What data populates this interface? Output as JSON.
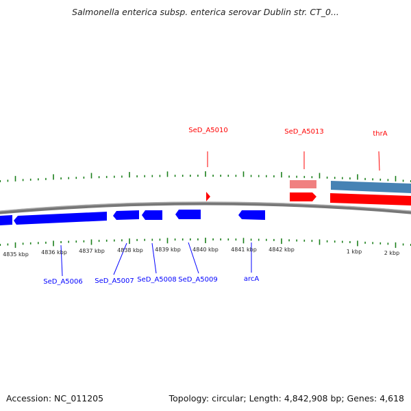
{
  "title": "Salmonella enterica subsp. enterica serovar Dublin str. CT_0...",
  "accession": "Accession: NC_011205",
  "summary": "Topology: circular; Length: 4,842,908 bp; Genes: 4,618",
  "colors": {
    "forward": "#ff0000",
    "forward_light": "#f08080",
    "reverse": "#0000ff",
    "steel": "#4682b4",
    "tick": "#1a7f1a",
    "backbone": "#888888"
  },
  "kbp_labels": [
    "4835 kbp",
    "4836 kbp",
    "4837 kbp",
    "4838 kbp",
    "4839 kbp",
    "4840 kbp",
    "4841 kbp",
    "4842 kbp",
    "1 kbp",
    "2 kbp"
  ],
  "forward_genes": [
    {
      "label": "SeD_A5010"
    },
    {
      "label": "SeD_A5013"
    },
    {
      "label": "thrA"
    }
  ],
  "reverse_genes": [
    {
      "label": "SeD_A5006"
    },
    {
      "label": "SeD_A5007"
    },
    {
      "label": "SeD_A5008"
    },
    {
      "label": "SeD_A5009"
    },
    {
      "label": "arcA"
    }
  ]
}
